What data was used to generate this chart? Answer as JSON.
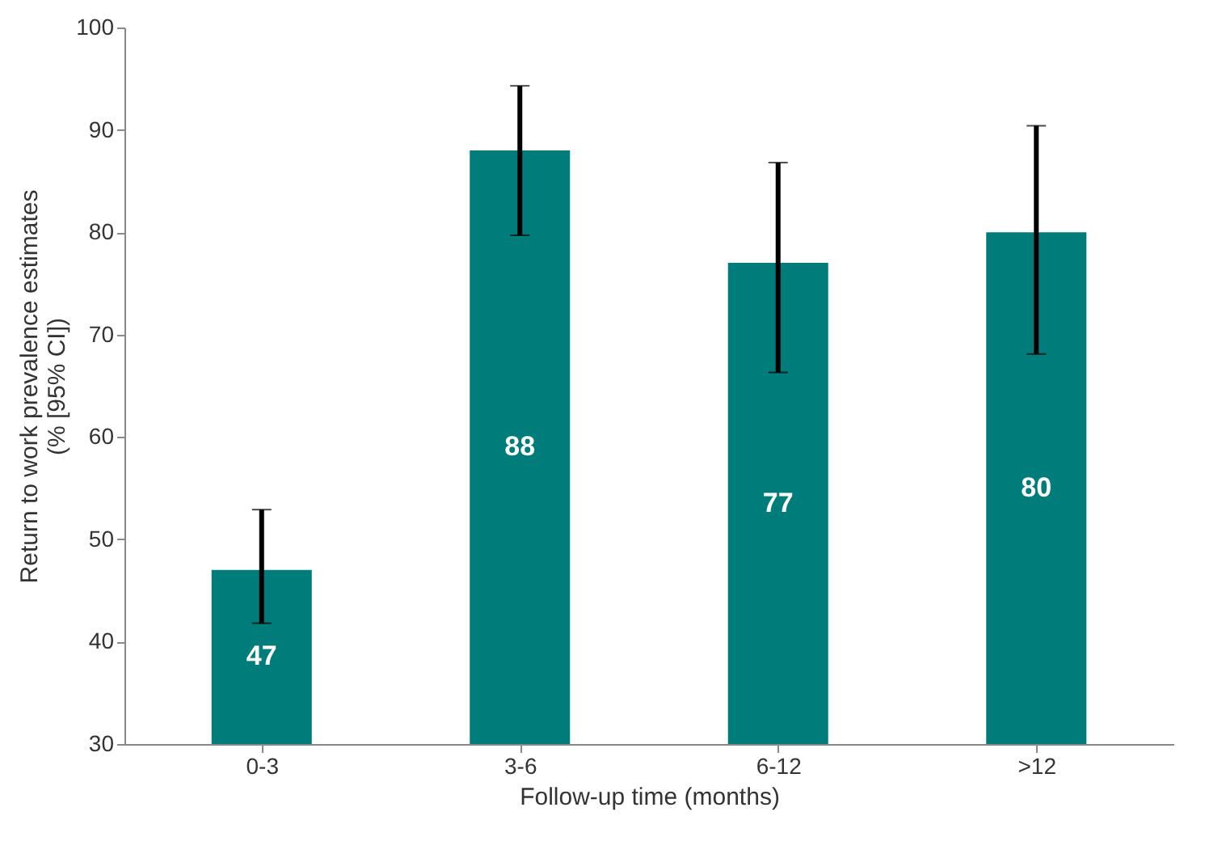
{
  "chart_data": {
    "type": "bar",
    "xlabel": "Follow-up time (months)",
    "ylabel": "Return to work prevalence estimates\n(% [95% CI])",
    "categories": [
      "0-3",
      "3-6",
      "6-12",
      ">12"
    ],
    "values": [
      47,
      88,
      77,
      80
    ],
    "color": "#007d7a",
    "errors": [
      [
        41.8,
        52.9
      ],
      [
        79.7,
        94.3
      ],
      [
        66.3,
        86.8
      ],
      [
        68.1,
        90.4
      ]
    ],
    "data_labels": true,
    "ylim": [
      30,
      100
    ],
    "yticks": [
      30,
      40,
      50,
      60,
      70,
      80,
      90,
      100
    ],
    "grid": false
  }
}
